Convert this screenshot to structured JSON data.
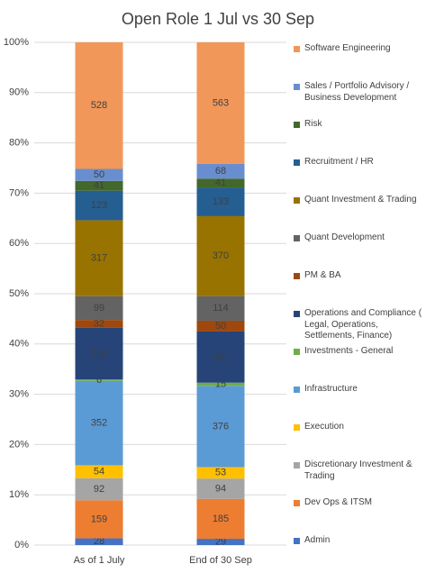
{
  "chart_data": {
    "type": "stacked_bar_percent",
    "title": "Open Role 1 Jul vs 30 Sep",
    "categories": [
      "As of 1 July",
      "End of 30 Sep"
    ],
    "ylim": [
      0,
      100
    ],
    "yticks": [
      {
        "value": 0,
        "label": "0%"
      },
      {
        "value": 10,
        "label": "10%"
      },
      {
        "value": 20,
        "label": "20%"
      },
      {
        "value": 30,
        "label": "30%"
      },
      {
        "value": 40,
        "label": "40%"
      },
      {
        "value": 50,
        "label": "50%"
      },
      {
        "value": 60,
        "label": "60%"
      },
      {
        "value": 70,
        "label": "70%"
      },
      {
        "value": 80,
        "label": "80%"
      },
      {
        "value": 90,
        "label": "90%"
      },
      {
        "value": 100,
        "label": "100%"
      }
    ],
    "grid": true,
    "legend": "right",
    "series": [
      {
        "name": "Admin",
        "color": "#4472c4",
        "values": [
          28,
          29
        ]
      },
      {
        "name": "Dev Ops & ITSM",
        "color": "#ed7d31",
        "values": [
          159,
          185
        ]
      },
      {
        "name": "Discretionary Investment & Trading",
        "color": "#a5a5a5",
        "values": [
          92,
          94
        ]
      },
      {
        "name": "Execution",
        "color": "#ffc000",
        "values": [
          54,
          53
        ]
      },
      {
        "name": "Infrastructure",
        "color": "#5b9bd5",
        "values": [
          352,
          376
        ]
      },
      {
        "name": "Investments - General",
        "color": "#70ad47",
        "values": [
          6,
          15
        ]
      },
      {
        "name": "Operations and Compliance ( Legal, Operations, Settlements, Finance)",
        "color": "#264478",
        "values": [
          216,
          237
        ]
      },
      {
        "name": "PM & BA",
        "color": "#9e480e",
        "values": [
          32,
          50
        ]
      },
      {
        "name": "Quant Development",
        "color": "#636363",
        "values": [
          99,
          114
        ]
      },
      {
        "name": "Quant Investment & Trading",
        "color": "#997300",
        "values": [
          317,
          370
        ]
      },
      {
        "name": "Recruitment / HR",
        "color": "#255e91",
        "values": [
          123,
          133
        ]
      },
      {
        "name": "Risk",
        "color": "#43682b",
        "values": [
          41,
          41
        ]
      },
      {
        "name": "Sales / Portfolio Advisory / Business Development",
        "color": "#698ed0",
        "values": [
          50,
          68
        ]
      },
      {
        "name": "Software Engineering",
        "color": "#f1975a",
        "values": [
          528,
          563
        ]
      }
    ]
  }
}
